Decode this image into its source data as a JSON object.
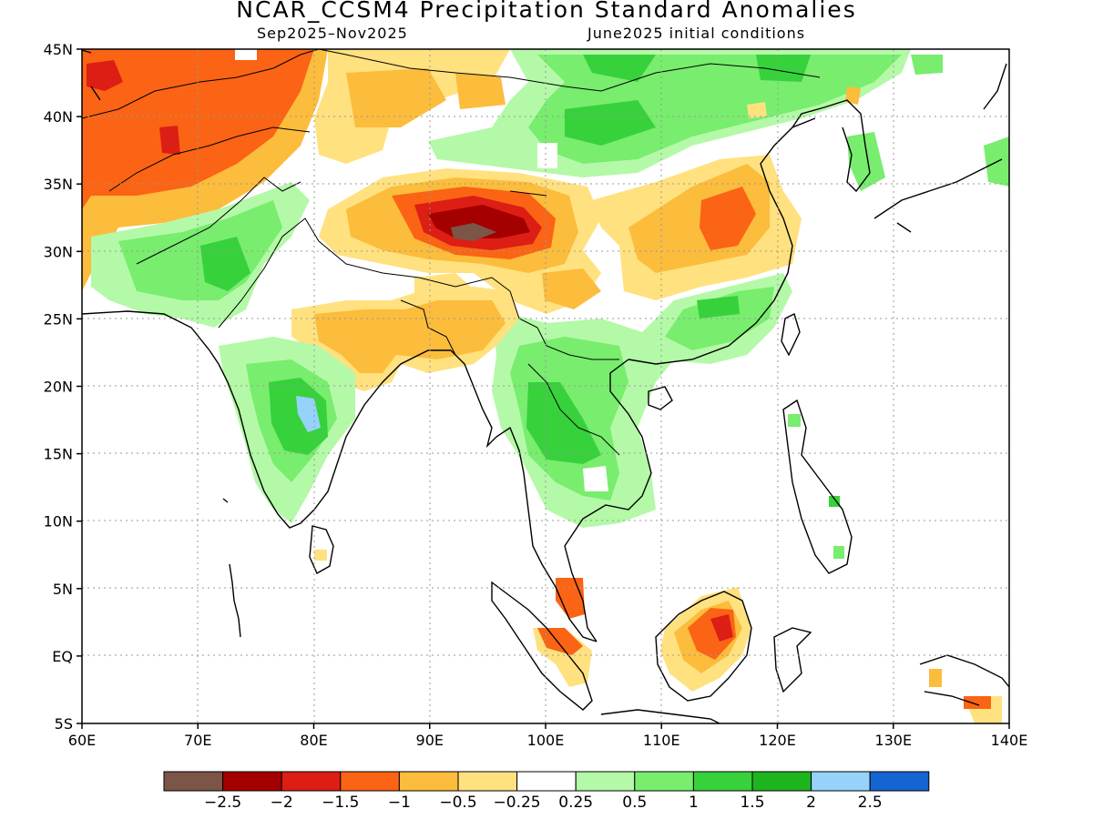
{
  "title": "NCAR_CCSM4 Precipitation Standard Anomalies",
  "subtitle_left": "Sep2025–Nov2025",
  "subtitle_right": "June2025 initial conditions",
  "lat_labels": [
    "45N",
    "40N",
    "35N",
    "30N",
    "25N",
    "20N",
    "15N",
    "10N",
    "5N",
    "EQ",
    "5S"
  ],
  "lon_labels": [
    "60E",
    "70E",
    "80E",
    "90E",
    "100E",
    "110E",
    "120E",
    "130E",
    "140E"
  ],
  "colorbar": {
    "colors": [
      "#7b5548",
      "#a50000",
      "#dc1e14",
      "#fa6414",
      "#fcbc3c",
      "#ffe17f",
      "#ffffff",
      "#b4f9a8",
      "#78ed6e",
      "#37d13c",
      "#1eb41e",
      "#96d2fa",
      "#1464d2"
    ],
    "labels": [
      "−2.5",
      "−2",
      "−1.5",
      "−1",
      "−0.5",
      "−0.25",
      "0.25",
      "0.5",
      "1",
      "1.5",
      "2",
      "2.5"
    ]
  }
}
